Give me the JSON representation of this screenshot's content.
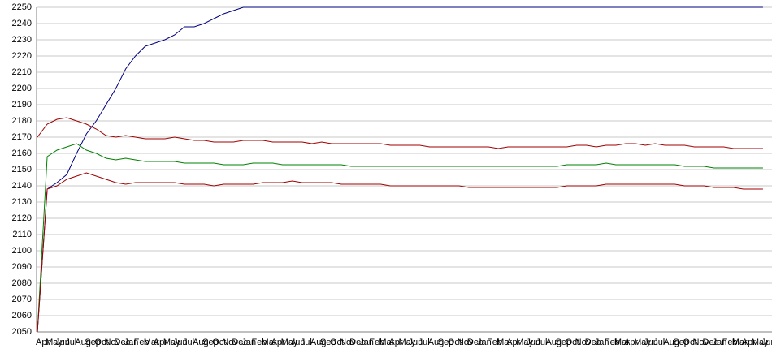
{
  "chart_data": {
    "type": "line",
    "categories": [
      "Apr",
      "May",
      "Jun",
      "Jul",
      "Aug",
      "Sep",
      "Oct",
      "Nov",
      "Dec",
      "Jan",
      "Feb",
      "Mar",
      "Apr",
      "May",
      "Jun",
      "Jul",
      "Aug",
      "Sep",
      "Oct",
      "Nov",
      "Dec",
      "Jan",
      "Feb",
      "Mar",
      "Apr",
      "May",
      "Jun",
      "Jul",
      "Aug",
      "Sep",
      "Oct",
      "Nov",
      "Dec",
      "Jan",
      "Feb",
      "Mar",
      "Apr",
      "May",
      "Jun",
      "Jul",
      "Aug",
      "Sep",
      "Oct",
      "Nov",
      "Dec",
      "Jan",
      "Feb",
      "Mar",
      "Apr",
      "May",
      "Jun",
      "Jul",
      "Aug",
      "Sep",
      "Oct",
      "Nov",
      "Dec",
      "Jan",
      "Feb",
      "Mar",
      "Apr",
      "May",
      "Jun",
      "Jul",
      "Aug",
      "Sep",
      "Oct",
      "Nov",
      "Dec",
      "Jan",
      "Feb",
      "Mar",
      "Apr",
      "May",
      "Jun"
    ],
    "series": [
      {
        "color": "#000080",
        "values": [
          2050,
          2138,
          2142,
          2147,
          2160,
          2172,
          2180,
          2190,
          2200,
          2212,
          2220,
          2226,
          2228,
          2230,
          2233,
          2238,
          2238,
          2240,
          2243,
          2246,
          2248,
          2250,
          2250,
          2250,
          2250,
          2250,
          2250,
          2250,
          2250,
          2250,
          2250,
          2250,
          2250,
          2250,
          2250,
          2250,
          2250,
          2250,
          2250,
          2250,
          2250,
          2250,
          2250,
          2250,
          2250,
          2250,
          2250,
          2250,
          2250,
          2250,
          2250,
          2250,
          2250,
          2250,
          2250,
          2250,
          2250,
          2250,
          2250,
          2250,
          2250,
          2250,
          2250,
          2250,
          2250,
          2250,
          2250,
          2250,
          2250,
          2250,
          2250,
          2250,
          2250,
          2250,
          2250
        ]
      },
      {
        "color": "#a00000",
        "values": [
          2170,
          2178,
          2181,
          2182,
          2180,
          2178,
          2175,
          2171,
          2170,
          2171,
          2170,
          2169,
          2169,
          2169,
          2170,
          2169,
          2168,
          2168,
          2167,
          2167,
          2167,
          2168,
          2168,
          2168,
          2167,
          2167,
          2167,
          2167,
          2166,
          2167,
          2166,
          2166,
          2166,
          2166,
          2166,
          2166,
          2165,
          2165,
          2165,
          2165,
          2164,
          2164,
          2164,
          2164,
          2164,
          2164,
          2164,
          2163,
          2164,
          2164,
          2164,
          2164,
          2164,
          2164,
          2164,
          2165,
          2165,
          2164,
          2165,
          2165,
          2166,
          2166,
          2165,
          2166,
          2165,
          2165,
          2165,
          2164,
          2164,
          2164,
          2164,
          2163,
          2163,
          2163,
          2163
        ]
      },
      {
        "color": "#008000",
        "values": [
          2050,
          2158,
          2162,
          2164,
          2166,
          2162,
          2160,
          2157,
          2156,
          2157,
          2156,
          2155,
          2155,
          2155,
          2155,
          2154,
          2154,
          2154,
          2154,
          2153,
          2153,
          2153,
          2154,
          2154,
          2154,
          2153,
          2153,
          2153,
          2153,
          2153,
          2153,
          2153,
          2152,
          2152,
          2152,
          2152,
          2152,
          2152,
          2152,
          2152,
          2152,
          2152,
          2152,
          2152,
          2152,
          2152,
          2152,
          2152,
          2152,
          2152,
          2152,
          2152,
          2152,
          2152,
          2153,
          2153,
          2153,
          2153,
          2154,
          2153,
          2153,
          2153,
          2153,
          2153,
          2153,
          2153,
          2152,
          2152,
          2152,
          2151,
          2151,
          2151,
          2151,
          2151,
          2151
        ]
      },
      {
        "color": "#a00000",
        "values": [
          2050,
          2138,
          2140,
          2144,
          2146,
          2148,
          2146,
          2144,
          2142,
          2141,
          2142,
          2142,
          2142,
          2142,
          2142,
          2141,
          2141,
          2141,
          2140,
          2141,
          2141,
          2141,
          2141,
          2142,
          2142,
          2142,
          2143,
          2142,
          2142,
          2142,
          2142,
          2141,
          2141,
          2141,
          2141,
          2141,
          2140,
          2140,
          2140,
          2140,
          2140,
          2140,
          2140,
          2140,
          2139,
          2139,
          2139,
          2139,
          2139,
          2139,
          2139,
          2139,
          2139,
          2139,
          2140,
          2140,
          2140,
          2140,
          2141,
          2141,
          2141,
          2141,
          2141,
          2141,
          2141,
          2141,
          2140,
          2140,
          2140,
          2139,
          2139,
          2139,
          2138,
          2138,
          2138
        ]
      }
    ],
    "ylim": [
      2050,
      2250
    ],
    "yticks": [
      2050,
      2060,
      2070,
      2080,
      2090,
      2100,
      2110,
      2120,
      2130,
      2140,
      2150,
      2160,
      2170,
      2180,
      2190,
      2200,
      2210,
      2220,
      2230,
      2240,
      2250
    ],
    "grid": true
  }
}
